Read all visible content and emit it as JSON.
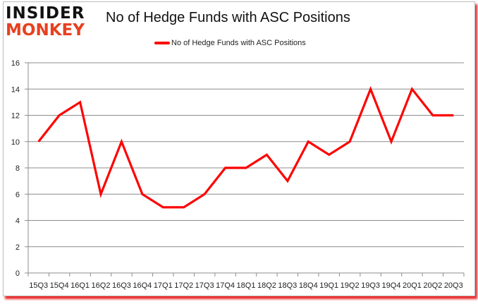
{
  "logo": {
    "line1": "INSIDER",
    "line2": "MONKEY"
  },
  "chart_data": {
    "type": "line",
    "title": "No of Hedge Funds with ASC Positions",
    "xlabel": "",
    "ylabel": "",
    "ylim": [
      0,
      16
    ],
    "yticks": [
      0,
      2,
      4,
      6,
      8,
      10,
      12,
      14,
      16
    ],
    "grid": true,
    "legend_position": "top",
    "categories": [
      "15Q3",
      "15Q4",
      "16Q1",
      "16Q2",
      "16Q3",
      "16Q4",
      "17Q1",
      "17Q2",
      "17Q3",
      "17Q4",
      "18Q1",
      "18Q2",
      "18Q3",
      "18Q4",
      "19Q1",
      "19Q2",
      "19Q3",
      "19Q4",
      "20Q1",
      "20Q2",
      "20Q3"
    ],
    "series": [
      {
        "name": "No of Hedge Funds with ASC Positions",
        "color": "#ff0000",
        "values": [
          10,
          12,
          13,
          6,
          10,
          6,
          5,
          5,
          6,
          8,
          8,
          9,
          7,
          10,
          9,
          10,
          14,
          10,
          14,
          12,
          12
        ]
      }
    ]
  }
}
